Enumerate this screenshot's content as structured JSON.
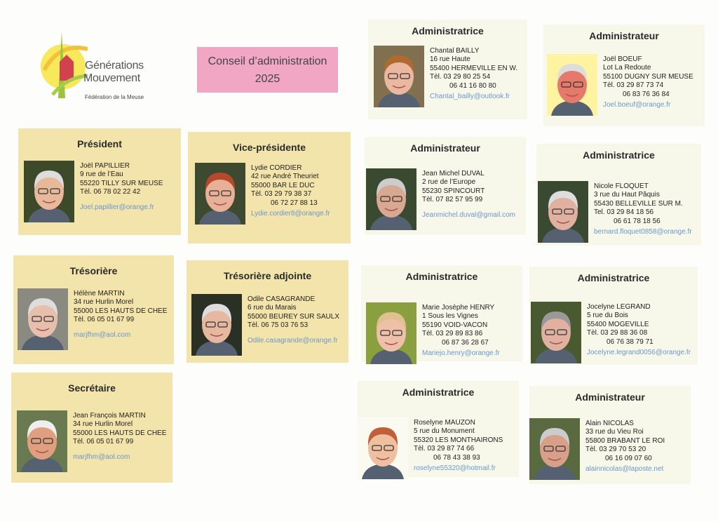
{
  "header": {
    "logo": {
      "line1": "Générations",
      "line2": "Mouvement",
      "subtitle": "Fédération de la Meuse"
    },
    "title_line1": "Conseil d’administration",
    "title_line2": "2025"
  },
  "colors": {
    "beige_card": "#f3e4ab",
    "pale_card": "#f7f8ea",
    "title_box": "#f1a6c4",
    "email": "#6a98cc"
  },
  "members": [
    {
      "role": "Président",
      "name": "Joël PAPILLIER",
      "address": "9 rue de l’Eau",
      "city": "55220 TILLY SUR MEUSE",
      "phone1": "Tèl. 06 78 02 22 42",
      "phone2": "",
      "email": "Joel.papillier@orange.fr"
    },
    {
      "role": "Vice-présidente",
      "name": "Lydie CORDIER",
      "address": "42 rue André Theuriet",
      "city": "55000  BAR LE DUC",
      "phone1": "Tèl. 03 29 79 38 37",
      "phone2": "06 72 27 88 13",
      "email": "Lydie.cordier8@orange.fr"
    },
    {
      "role": "Trésorière",
      "name": "Hélène MARTIN",
      "address": "34 rue Hurlin Morel",
      "city": "55000  LES HAUTS DE CHEE",
      "phone1": "Tèl. 06 05 01 67 99",
      "phone2": "",
      "email": "marjfhm@aol.com"
    },
    {
      "role": "Trésorière adjointe",
      "name": "Odile CASAGRANDE",
      "address": "6 rue du Marais",
      "city": "55000  BEUREY SUR SAULX",
      "phone1": "Tèl. 06 75 03 76 53",
      "phone2": "",
      "email": "Odile.casagrande@orange.fr"
    },
    {
      "role": "Secrétaire",
      "name": "Jean François MARTIN",
      "address": "34 rue Hurlin Morel",
      "city": "55000  LES HAUTS DE CHEE",
      "phone1": "Tèl. 06 05 01 67 99",
      "phone2": "",
      "email": "marjfhm@aol.com"
    },
    {
      "role": "Administratrice",
      "name": "Chantal BAILLY",
      "address": "16 rue Haute",
      "city": "55400 HERMEVILLE EN W.",
      "phone1": "Tèl. 03 29 80 25 54",
      "phone2": "06 41 16 80 80",
      "email": "Chantal_bailly@outlook.fr"
    },
    {
      "role": "Administrateur",
      "name": "Joël BOEUF",
      "address": "Lot La Redoute",
      "city": "55100  DUGNY SUR MEUSE",
      "phone1": "Tèl. 03 29 87 73 74",
      "phone2": "06 83 76 36 84",
      "email": "Joel.boeuf@orange.fr"
    },
    {
      "role": "Administrateur",
      "name": "Jean Michel DUVAL",
      "address": "2 rue de l’Europe",
      "city": "55230 SPINCOURT",
      "phone1": "Tèl. 07 82 57 95 99",
      "phone2": "",
      "email": "Jeanmichel.duval@gmail.com"
    },
    {
      "role": "Administratrice",
      "name": "Nicole FLOQUET",
      "address": "3 rue du Haut Pâquis",
      "city": "55430 BELLEVILLE SUR M.",
      "phone1": "Tel.  03 29 84 18 56",
      "phone2": "06 61 78 18 56",
      "email": "bernard.floquet0858@orange.fr"
    },
    {
      "role": "Administratrice",
      "name": "Marie Josèphe HENRY",
      "address": "1 Sous les Vignes",
      "city": "55190 VOID-VACON",
      "phone1": "Tèl. 03 29 89 83 86",
      "phone2": "06 87 36 28 67",
      "email": "Mariejo.henry@orange.fr"
    },
    {
      "role": "Administratrice",
      "name": "Jocelyne LEGRAND",
      "address": "5 rue du Bois",
      "city": "55400  MOGEVILLE",
      "phone1": "Tèl. 03 29 88 36 08",
      "phone2": "06 76 38 79 71",
      "email": "Jocelyne.legrand0056@orange.fr"
    },
    {
      "role": "Administratrice",
      "name": "Roselyne MAUZON",
      "address": "5 rue du Monument",
      "city": "55320  LES MONTHAIRONS",
      "phone1": "Tèl. 03 29 87 74 66",
      "phone2": "06 78 43 38 93",
      "email": "roselyne55320@hotmail.fr"
    },
    {
      "role": "Administrateur",
      "name": "Alain NICOLAS",
      "address": "33 rue du Vieu Roi",
      "city": "55800  BRABANT LE ROI",
      "phone1": "Tèl. 03 29 70 53 20",
      "phone2": "06 16 09 07 60",
      "email": "alainnicolas@laposte.net"
    }
  ]
}
